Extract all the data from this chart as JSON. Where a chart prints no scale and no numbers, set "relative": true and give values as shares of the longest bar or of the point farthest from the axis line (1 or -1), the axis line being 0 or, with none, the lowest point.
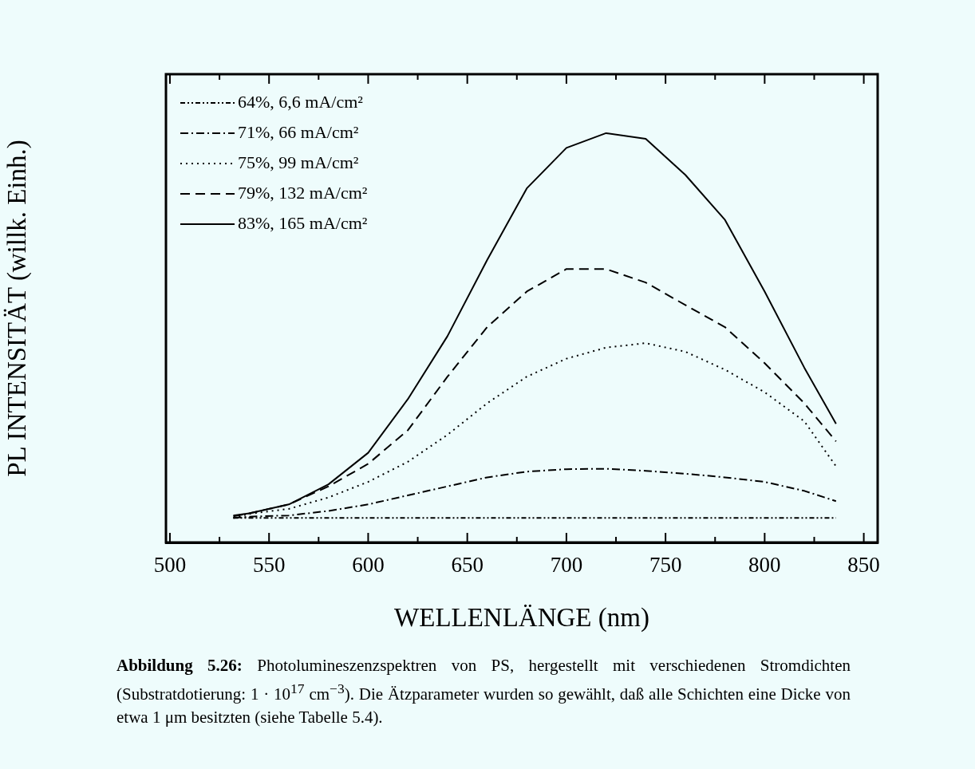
{
  "chart_data": {
    "type": "line",
    "relative": true,
    "xlabel": "WELLENLÄNGE (nm)",
    "ylabel": "PL INTENSITÄT (willk. Einh.)",
    "xlim": [
      498,
      857
    ],
    "xticks": [
      500,
      {
        "value": 525,
        "label": null
      },
      550,
      {
        "value": 575,
        "label": null
      },
      600,
      {
        "value": 625,
        "label": null
      },
      650,
      {
        "value": 675,
        "label": null
      },
      700,
      {
        "value": 725,
        "label": null
      },
      750,
      {
        "value": 775,
        "label": null
      },
      800,
      {
        "value": 825,
        "label": null
      },
      850
    ],
    "x": [
      532,
      540,
      560,
      580,
      600,
      620,
      640,
      660,
      680,
      700,
      720,
      740,
      760,
      780,
      800,
      820,
      836
    ],
    "legend": "top left",
    "grid": false,
    "marker": "none",
    "series": [
      {
        "name": "64%, 6,6 mA/cm²",
        "color": "#000000",
        "line_style": "dashdotdot",
        "values": [
          0.06,
          0.06,
          0.06,
          0.06,
          0.06,
          0.06,
          0.06,
          0.06,
          0.06,
          0.06,
          0.06,
          0.06,
          0.06,
          0.06,
          0.06,
          0.06,
          0.06
        ]
      },
      {
        "name": "71%, 66 mA/cm²",
        "color": "#000000",
        "line_style": "dashdot",
        "values": [
          0.06,
          0.063,
          0.066,
          0.077,
          0.093,
          0.115,
          0.137,
          0.159,
          0.173,
          0.179,
          0.18,
          0.175,
          0.168,
          0.159,
          0.148,
          0.126,
          0.101
        ]
      },
      {
        "name": "75%, 99 mA/cm²",
        "color": "#000000",
        "line_style": "dotted",
        "values": [
          0.06,
          0.07,
          0.082,
          0.11,
          0.148,
          0.197,
          0.263,
          0.34,
          0.405,
          0.449,
          0.476,
          0.487,
          0.466,
          0.422,
          0.367,
          0.296,
          0.186
        ]
      },
      {
        "name": "79%, 132 mA/cm²",
        "color": "#000000",
        "line_style": "dashed",
        "values": [
          0.064,
          0.071,
          0.093,
          0.137,
          0.192,
          0.274,
          0.405,
          0.526,
          0.613,
          0.668,
          0.668,
          0.635,
          0.58,
          0.526,
          0.438,
          0.34,
          0.247
        ]
      },
      {
        "name": "83%, 165 mA/cm²",
        "color": "#000000",
        "line_style": "solid",
        "values": [
          0.066,
          0.071,
          0.093,
          0.142,
          0.219,
          0.35,
          0.504,
          0.69,
          0.865,
          0.964,
          1,
          0.986,
          0.898,
          0.788,
          0.613,
          0.427,
          0.29
        ]
      }
    ],
    "annotations": [
      "Abbildung 5.26: Photolumineszenzspektren von PS, hergestellt mit verschiedenen Stromdichten (Substratdotierung: 1 · 10$^{17}$ cm$^{−3}$). Die Ätzparameter wurden so gewählt, daß alle Schichten eine Dicke von etwa 1 μm besitzten (siehe Tabelle 5.4)."
    ]
  }
}
